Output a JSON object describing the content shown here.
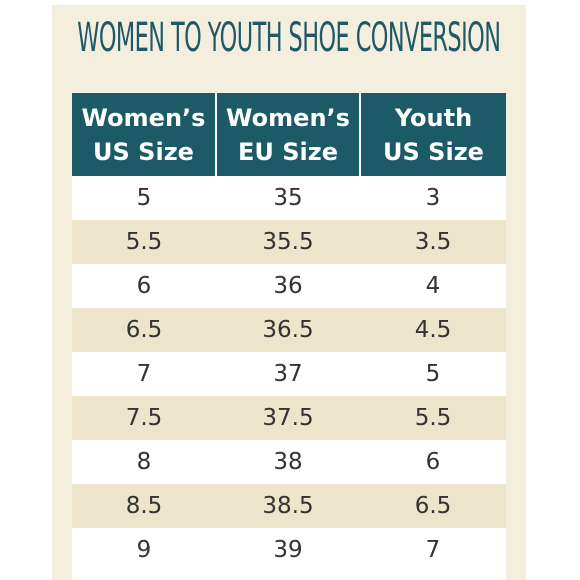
{
  "title": "WOMEN TO YOUTH SHOE CONVERSION",
  "table": {
    "headers": [
      [
        "Women’s",
        "US Size"
      ],
      [
        "Women’s",
        "EU Size"
      ],
      [
        "Youth",
        "US Size"
      ]
    ],
    "rows": [
      [
        "5",
        "35",
        "3"
      ],
      [
        "5.5",
        "35.5",
        "3.5"
      ],
      [
        "6",
        "36",
        "4"
      ],
      [
        "6.5",
        "36.5",
        "4.5"
      ],
      [
        "7",
        "37",
        "5"
      ],
      [
        "7.5",
        "37.5",
        "5.5"
      ],
      [
        "8",
        "38",
        "6"
      ],
      [
        "8.5",
        "38.5",
        "6.5"
      ],
      [
        "9",
        "39",
        "7"
      ]
    ]
  },
  "colors": {
    "header_background": "#1d5a68",
    "title_text": "#1f5968",
    "card_background": "#f3eedd",
    "stripe_row": "#ede4cc",
    "plain_row": "#ffffff"
  }
}
